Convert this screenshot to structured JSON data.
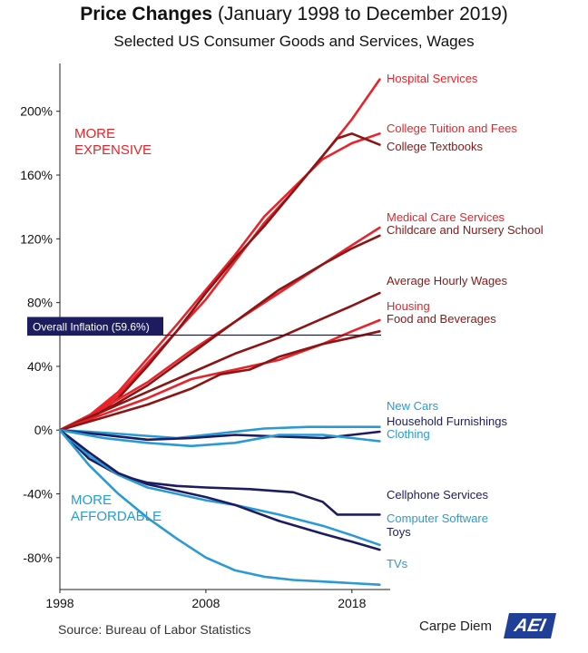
{
  "header": {
    "title_bold": "Price Changes",
    "title_rest": " (January 1998 to December 2019)",
    "subtitle": "Selected US Consumer Goods and Services, Wages"
  },
  "annotations": {
    "more_expensive": "MORE\nEXPENSIVE",
    "more_affordable": "MORE\nAFFORDABLE",
    "inflation_label": "Overall Inflation (59.6%)"
  },
  "footer": {
    "source": "Source: Bureau of Labor Statistics",
    "brand": "Carpe Diem",
    "logo": "AEI"
  },
  "colors": {
    "red": "#e8242a",
    "darkred": "#8b1515",
    "navy": "#1c1c5e",
    "blue": "#2a9ad6",
    "inflation_line": "#1c1c5e",
    "expensive_text": "#e8242a",
    "affordable_text": "#2a9ad6"
  },
  "chart_data": {
    "type": "line",
    "xlim": [
      1998,
      2020
    ],
    "ylim": [
      -100,
      230
    ],
    "x_ticks": [
      1998,
      2008,
      2018
    ],
    "y_ticks": [
      -80,
      -40,
      0,
      40,
      80,
      120,
      160,
      200
    ],
    "y_tick_labels": [
      "-80%",
      "-40%",
      "0%",
      "40%",
      "80%",
      "120%",
      "160%",
      "200%"
    ],
    "overall_inflation": 59.6,
    "grid": false,
    "series": [
      {
        "name": "Hospital Services",
        "color": "red",
        "x": [
          1998,
          2000,
          2002,
          2004,
          2006,
          2008,
          2010,
          2012,
          2014,
          2016,
          2018,
          2019.9
        ],
        "values": [
          0,
          8,
          22,
          42,
          62,
          82,
          106,
          130,
          150,
          172,
          195,
          220
        ]
      },
      {
        "name": "College Tuition and Fees",
        "color": "red",
        "x": [
          1998,
          2000,
          2002,
          2004,
          2006,
          2008,
          2010,
          2012,
          2014,
          2016,
          2018,
          2019.9
        ],
        "values": [
          0,
          9,
          24,
          45,
          66,
          88,
          110,
          134,
          152,
          170,
          180,
          186
        ]
      },
      {
        "name": "College Textbooks",
        "color": "darkred",
        "x": [
          1998,
          2000,
          2002,
          2004,
          2006,
          2008,
          2010,
          2012,
          2014,
          2016,
          2017,
          2018,
          2019.9
        ],
        "values": [
          0,
          6,
          20,
          40,
          62,
          86,
          108,
          128,
          150,
          172,
          183,
          186,
          179
        ]
      },
      {
        "name": "Medical Care Services",
        "color": "red",
        "x": [
          1998,
          2001,
          2004,
          2007,
          2010,
          2013,
          2016,
          2018,
          2019.9
        ],
        "values": [
          0,
          14,
          30,
          50,
          68,
          86,
          104,
          116,
          127
        ]
      },
      {
        "name": "Childcare and Nursery School",
        "color": "darkred",
        "x": [
          1998,
          2001,
          2004,
          2007,
          2010,
          2013,
          2016,
          2018,
          2019.9
        ],
        "values": [
          0,
          12,
          28,
          48,
          68,
          88,
          104,
          114,
          122
        ]
      },
      {
        "name": "Average Hourly Wages",
        "color": "darkred",
        "x": [
          1998,
          2001,
          2004,
          2007,
          2010,
          2013,
          2016,
          2018,
          2019.9
        ],
        "values": [
          0,
          12,
          24,
          36,
          48,
          58,
          70,
          78,
          86
        ]
      },
      {
        "name": "Housing",
        "color": "red",
        "x": [
          1998,
          2001,
          2004,
          2007,
          2010,
          2013,
          2016,
          2018,
          2019.9
        ],
        "values": [
          0,
          10,
          20,
          32,
          38,
          44,
          54,
          62,
          69
        ]
      },
      {
        "name": "Food and Beverages",
        "color": "darkred",
        "x": [
          1998,
          2001,
          2004,
          2007,
          2009,
          2011,
          2013,
          2016,
          2018,
          2019.9
        ],
        "values": [
          0,
          8,
          16,
          26,
          35,
          38,
          46,
          54,
          58,
          62
        ]
      },
      {
        "name": "New Cars",
        "color": "blue",
        "x": [
          1998,
          2000,
          2003,
          2006,
          2009,
          2012,
          2015,
          2018,
          2019.9
        ],
        "values": [
          0,
          -1,
          -3,
          -5,
          -2,
          1,
          2,
          2,
          2
        ]
      },
      {
        "name": "Household Furnishings",
        "color": "navy",
        "x": [
          1998,
          2001,
          2004,
          2007,
          2010,
          2013,
          2016,
          2018,
          2019.9
        ],
        "values": [
          0,
          -3,
          -6,
          -5,
          -3,
          -4,
          -5,
          -3,
          -1
        ]
      },
      {
        "name": "Clothing",
        "color": "blue",
        "x": [
          1998,
          2001,
          2004,
          2007,
          2010,
          2013,
          2016,
          2018,
          2019.9
        ],
        "values": [
          0,
          -5,
          -8,
          -10,
          -8,
          -3,
          -3,
          -5,
          -7
        ]
      },
      {
        "name": "Cellphone Services",
        "color": "navy",
        "x": [
          1998,
          2000,
          2002,
          2004,
          2006,
          2008,
          2011,
          2014,
          2016,
          2017,
          2019.9
        ],
        "values": [
          0,
          -18,
          -28,
          -33,
          -35,
          -36,
          -37,
          -39,
          -45,
          -53,
          -53
        ]
      },
      {
        "name": "Computer Software",
        "color": "blue",
        "x": [
          1998,
          2000,
          2002,
          2004,
          2006,
          2008,
          2010,
          2013,
          2016,
          2018,
          2019.9
        ],
        "values": [
          0,
          -16,
          -28,
          -36,
          -40,
          -44,
          -47,
          -53,
          -60,
          -66,
          -72
        ]
      },
      {
        "name": "Toys",
        "color": "navy",
        "x": [
          1998,
          2000,
          2002,
          2004,
          2006,
          2008,
          2010,
          2013,
          2016,
          2018,
          2019.9
        ],
        "values": [
          0,
          -14,
          -27,
          -34,
          -38,
          -42,
          -47,
          -57,
          -65,
          -70,
          -75
        ]
      },
      {
        "name": "TVs",
        "color": "blue",
        "x": [
          1998,
          2000,
          2002,
          2004,
          2006,
          2008,
          2010,
          2012,
          2014,
          2016,
          2018,
          2019.9
        ],
        "values": [
          0,
          -22,
          -40,
          -55,
          -68,
          -80,
          -88,
          -92,
          -94,
          -95,
          -96,
          -97
        ]
      }
    ]
  }
}
